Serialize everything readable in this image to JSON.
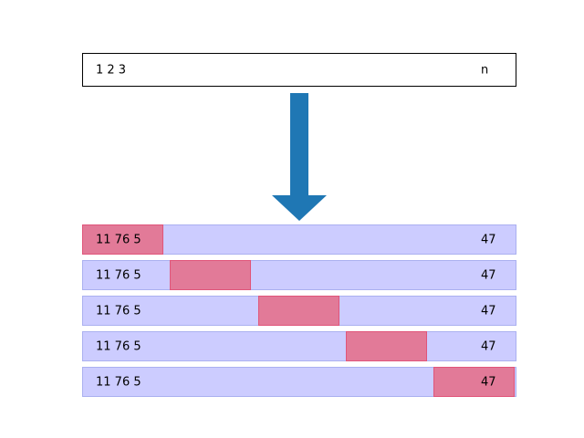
{
  "input": {
    "left_label": "1 2 3",
    "right_label": "n"
  },
  "colors": {
    "arrow": "#1f77b4",
    "row_fill": "#ccccff",
    "window_fill": "#e27a98"
  },
  "rows": [
    {
      "left_label": "11 76 5",
      "right_label": "47",
      "window_position": 0.0
    },
    {
      "left_label": "11 76 5",
      "right_label": "47",
      "window_position": 0.25
    },
    {
      "left_label": "11 76 5",
      "right_label": "47",
      "window_position": 0.5
    },
    {
      "left_label": "11 76 5",
      "right_label": "47",
      "window_position": 0.75
    },
    {
      "left_label": "11 76 5",
      "right_label": "47",
      "window_position": 1.0
    }
  ]
}
